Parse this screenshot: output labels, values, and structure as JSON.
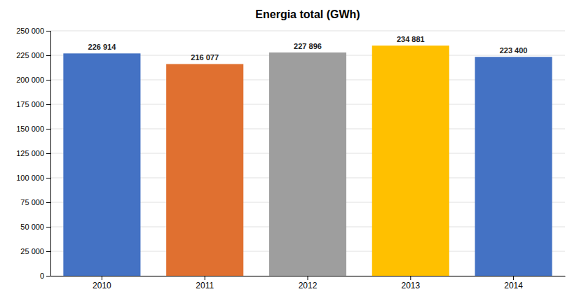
{
  "chart_data": {
    "type": "bar",
    "title": "Energia total (GWh)",
    "categories": [
      "2010",
      "2011",
      "2012",
      "2013",
      "2014"
    ],
    "values": [
      226914,
      216077,
      227896,
      234881,
      223400
    ],
    "value_labels": [
      "226 914",
      "216 077",
      "227 896",
      "234 881",
      "223 400"
    ],
    "data_labels": true,
    "colors": [
      "#4472C4",
      "#E07030",
      "#9E9E9E",
      "#FFC000",
      "#4472C4"
    ],
    "ylim": [
      0,
      250000
    ],
    "yticks": [
      0,
      {
        "value": 25000,
        "label": "25 000"
      },
      {
        "value": 50000,
        "label": "50 000"
      },
      {
        "value": 75000,
        "label": "75 000"
      },
      {
        "value": 100000,
        "label": "100 000"
      },
      {
        "value": 125000,
        "label": "125 000"
      },
      {
        "value": 150000,
        "label": "150 000"
      },
      {
        "value": 175000,
        "label": "175 000"
      },
      {
        "value": 200000,
        "label": "200 000"
      },
      {
        "value": 225000,
        "label": "225 000"
      },
      {
        "value": 250000,
        "label": "250 000"
      }
    ],
    "grid": true
  }
}
